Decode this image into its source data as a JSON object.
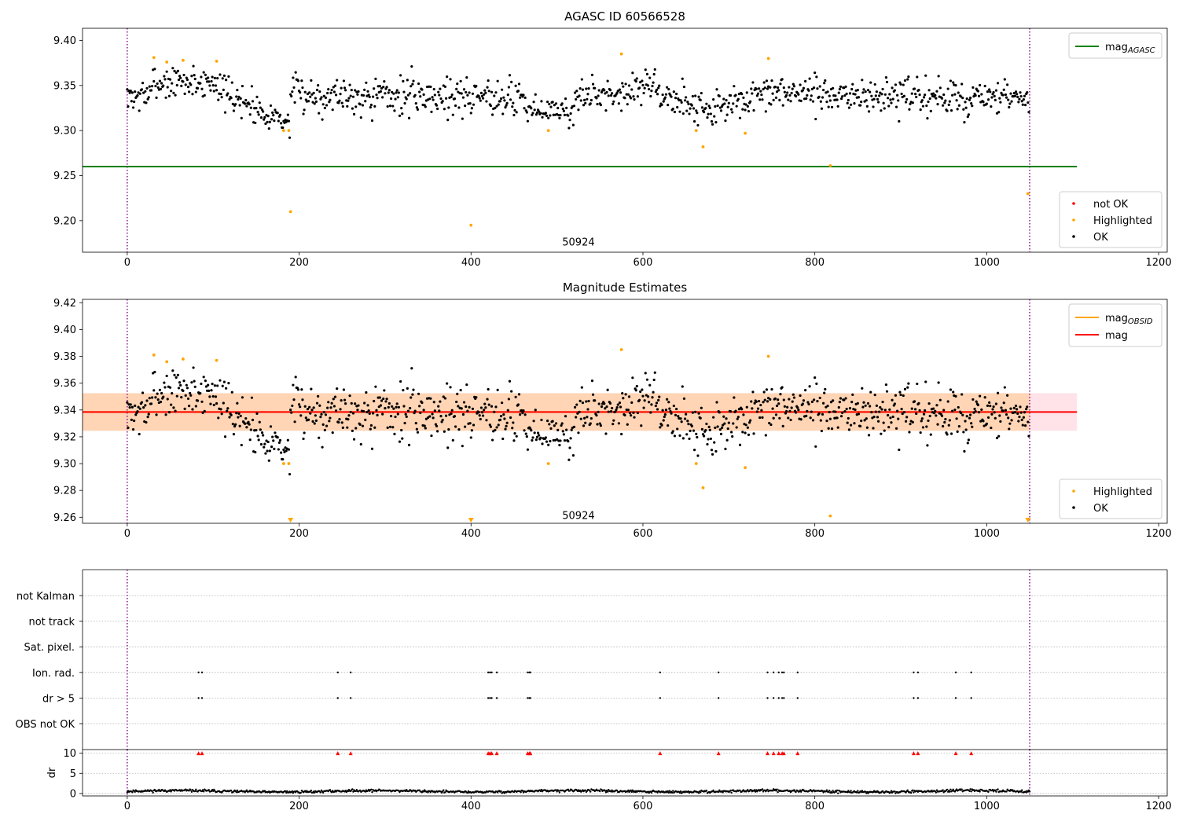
{
  "chart_data": [
    {
      "type": "scatter",
      "title": "AGASC ID 60566528",
      "xlabel": "",
      "ylabel": "",
      "xlim": [
        -52,
        1210
      ],
      "ylim": [
        9.165,
        9.4135
      ],
      "x_ticks": [
        0,
        200,
        400,
        600,
        800,
        1000,
        1200
      ],
      "y_ticks": [
        9.2,
        9.25,
        9.3,
        9.35,
        9.4
      ],
      "annotations": [
        {
          "text": "50924",
          "x": 525,
          "y": 9.176
        }
      ],
      "vlines": [
        {
          "x": 0,
          "color": "#800080",
          "style": "dotted"
        },
        {
          "x": 1050,
          "color": "#800080",
          "style": "dotted"
        }
      ],
      "hlines": [
        {
          "name": "mag_AGASC",
          "y": 9.26,
          "x_range": [
            -52,
            1105
          ],
          "color": "#008000"
        }
      ],
      "legend_lines": {
        "placement": "upper right",
        "items": [
          {
            "label": "mag",
            "sub": "AGASC",
            "color": "#008000"
          }
        ]
      },
      "legend_points": {
        "placement": "lower right",
        "items": [
          {
            "label": "not OK",
            "color": "#ff0000"
          },
          {
            "label": "Highlighted",
            "color": "#ffa500"
          },
          {
            "label": "OK",
            "color": "#000000"
          }
        ]
      },
      "series": [
        {
          "name": "Highlighted",
          "color": "#ffa500",
          "points": [
            [
              31,
              9.381
            ],
            [
              46,
              9.376
            ],
            [
              65,
              9.378
            ],
            [
              104,
              9.377
            ],
            [
              182,
              9.3
            ],
            [
              188,
              9.3
            ],
            [
              190,
              9.21
            ],
            [
              400,
              9.195
            ],
            [
              490,
              9.3
            ],
            [
              575,
              9.385
            ],
            [
              662,
              9.3
            ],
            [
              670,
              9.282
            ],
            [
              719,
              9.297
            ],
            [
              746,
              9.38
            ],
            [
              818,
              9.261
            ],
            [
              1048,
              9.23
            ]
          ]
        },
        {
          "name": "OK",
          "color": "#000000",
          "segments": [
            {
              "x": [
                0,
                30
              ],
              "y": [
                9.336,
                9.342
              ],
              "noise": 0.008
            },
            {
              "x": [
                30,
                110
              ],
              "y": [
                9.353,
                9.354
              ],
              "noise": 0.009
            },
            {
              "x": [
                110,
                190
              ],
              "y": [
                9.342,
                9.309
              ],
              "noise": 0.009
            },
            {
              "x": [
                190,
                460
              ],
              "y": [
                9.34,
                9.338
              ],
              "noise": 0.011
            },
            {
              "x": [
                460,
                520
              ],
              "y": [
                9.325,
                9.32
              ],
              "noise": 0.008
            },
            {
              "x": [
                520,
                620
              ],
              "y": [
                9.336,
                9.35
              ],
              "noise": 0.009
            },
            {
              "x": [
                620,
                690
              ],
              "y": [
                9.338,
                9.322
              ],
              "noise": 0.009
            },
            {
              "x": [
                690,
                780
              ],
              "y": [
                9.328,
                9.345
              ],
              "noise": 0.01
            },
            {
              "x": [
                780,
                1050
              ],
              "y": [
                9.34,
                9.334
              ],
              "noise": 0.01
            }
          ],
          "step": 1
        }
      ]
    },
    {
      "type": "scatter",
      "title": "Magnitude Estimates",
      "xlabel": "",
      "ylabel": "",
      "xlim": [
        -52,
        1210
      ],
      "ylim": [
        9.2555,
        9.4225
      ],
      "x_ticks": [
        0,
        200,
        400,
        600,
        800,
        1000,
        1200
      ],
      "y_ticks": [
        9.26,
        9.28,
        9.3,
        9.32,
        9.34,
        9.36,
        9.38,
        9.4,
        9.42
      ],
      "annotations": [
        {
          "text": "50924",
          "x": 525,
          "y": 9.261
        }
      ],
      "vlines": [
        {
          "x": 0,
          "color": "#800080",
          "style": "dotted"
        },
        {
          "x": 1050,
          "color": "#800080",
          "style": "dotted"
        }
      ],
      "bands": [
        {
          "name": "mag range",
          "y": [
            9.3245,
            9.3525
          ],
          "x_range": [
            -52,
            1105
          ],
          "color": "#ffc0cb",
          "opacity": 0.45
        },
        {
          "name": "mag_OBSID range",
          "y": [
            9.3245,
            9.3525
          ],
          "x_range": [
            -52,
            1050
          ],
          "color": "#ffa500",
          "opacity": 0.22
        }
      ],
      "hlines": [
        {
          "name": "mag_OBSID",
          "y": 9.3385,
          "x_range": [
            -52,
            1050
          ],
          "color": "#ffa500"
        },
        {
          "name": "mag",
          "y": 9.3385,
          "x_range": [
            -52,
            1105
          ],
          "color": "#ff0000"
        }
      ],
      "legend_lines": {
        "placement": "upper right",
        "items": [
          {
            "label": "mag",
            "sub": "OBSID",
            "color": "#ffa500"
          },
          {
            "label": "mag",
            "sub": "",
            "color": "#ff0000"
          }
        ]
      },
      "legend_points": {
        "placement": "lower right",
        "items": [
          {
            "label": "Highlighted",
            "color": "#ffa500"
          },
          {
            "label": "OK",
            "color": "#000000"
          }
        ]
      },
      "series": [
        {
          "name": "Highlighted",
          "color": "#ffa500",
          "points": [
            [
              31,
              9.381
            ],
            [
              46,
              9.376
            ],
            [
              65,
              9.378
            ],
            [
              104,
              9.377
            ],
            [
              182,
              9.3
            ],
            [
              188,
              9.3
            ],
            [
              490,
              9.3
            ],
            [
              575,
              9.385
            ],
            [
              662,
              9.3
            ],
            [
              670,
              9.282
            ],
            [
              719,
              9.297
            ],
            [
              746,
              9.38
            ],
            [
              818,
              9.261
            ]
          ]
        },
        {
          "name": "Highlighted (below axis)",
          "color": "#ffa500",
          "marker": "triangle-down",
          "points": [
            [
              190,
              9.2555
            ],
            [
              400,
              9.2555
            ],
            [
              1048,
              9.2555
            ]
          ]
        },
        {
          "name": "OK",
          "color": "#000000",
          "segments": [
            {
              "x": [
                0,
                30
              ],
              "y": [
                9.336,
                9.342
              ],
              "noise": 0.008
            },
            {
              "x": [
                30,
                110
              ],
              "y": [
                9.353,
                9.354
              ],
              "noise": 0.009
            },
            {
              "x": [
                110,
                190
              ],
              "y": [
                9.342,
                9.309
              ],
              "noise": 0.009
            },
            {
              "x": [
                190,
                460
              ],
              "y": [
                9.34,
                9.338
              ],
              "noise": 0.011
            },
            {
              "x": [
                460,
                520
              ],
              "y": [
                9.325,
                9.32
              ],
              "noise": 0.008
            },
            {
              "x": [
                520,
                620
              ],
              "y": [
                9.336,
                9.35
              ],
              "noise": 0.009
            },
            {
              "x": [
                620,
                690
              ],
              "y": [
                9.338,
                9.322
              ],
              "noise": 0.009
            },
            {
              "x": [
                690,
                780
              ],
              "y": [
                9.328,
                9.345
              ],
              "noise": 0.01
            },
            {
              "x": [
                780,
                1050
              ],
              "y": [
                9.34,
                9.334
              ],
              "noise": 0.01
            }
          ],
          "step": 1
        }
      ]
    },
    {
      "type": "scatter",
      "title": "",
      "xlabel": "",
      "ylabel": "",
      "xlim": [
        -52,
        1210
      ],
      "categories": [
        "not Kalman",
        "not track",
        "Sat. pixel.",
        "Ion. rad.",
        "dr > 5",
        "OBS not OK"
      ],
      "vlines": [
        {
          "x": 0,
          "color": "#800080",
          "style": "dotted"
        },
        {
          "x": 1050,
          "color": "#800080",
          "style": "dotted"
        }
      ],
      "flags": [
        {
          "category": "Ion. rad.",
          "x": [
            83,
            87,
            245,
            260,
            420,
            422,
            424,
            430,
            466,
            468,
            469,
            620,
            688,
            745,
            752,
            758,
            762,
            764,
            780,
            915,
            920,
            964,
            982
          ]
        },
        {
          "category": "dr > 5",
          "x": [
            83,
            87,
            245,
            260,
            420,
            422,
            424,
            430,
            466,
            468,
            469,
            620,
            688,
            745,
            752,
            758,
            762,
            764,
            780,
            915,
            920,
            964,
            982
          ]
        }
      ]
    },
    {
      "type": "scatter",
      "title": "",
      "xlabel": "",
      "ylabel": "dr",
      "xlim": [
        -52,
        1210
      ],
      "ylim": [
        -0.6,
        10.9
      ],
      "x_ticks": [
        0,
        200,
        400,
        600,
        800,
        1000,
        1200
      ],
      "y_ticks": [
        0,
        5,
        10
      ],
      "vlines": [
        {
          "x": 0,
          "color": "#800080",
          "style": "dotted"
        },
        {
          "x": 1050,
          "color": "#800080",
          "style": "dotted"
        }
      ],
      "series": [
        {
          "name": "dr clipped",
          "color": "#ff0000",
          "marker": "triangle-up",
          "y": 10,
          "x": [
            83,
            87,
            245,
            260,
            420,
            422,
            424,
            430,
            466,
            468,
            469,
            620,
            688,
            745,
            752,
            758,
            762,
            764,
            780,
            915,
            920,
            964,
            982
          ]
        },
        {
          "name": "dr",
          "color": "#000000",
          "level": 0.55,
          "noise": 0.3,
          "x_range": [
            0,
            1050
          ],
          "step": 1
        }
      ]
    }
  ]
}
